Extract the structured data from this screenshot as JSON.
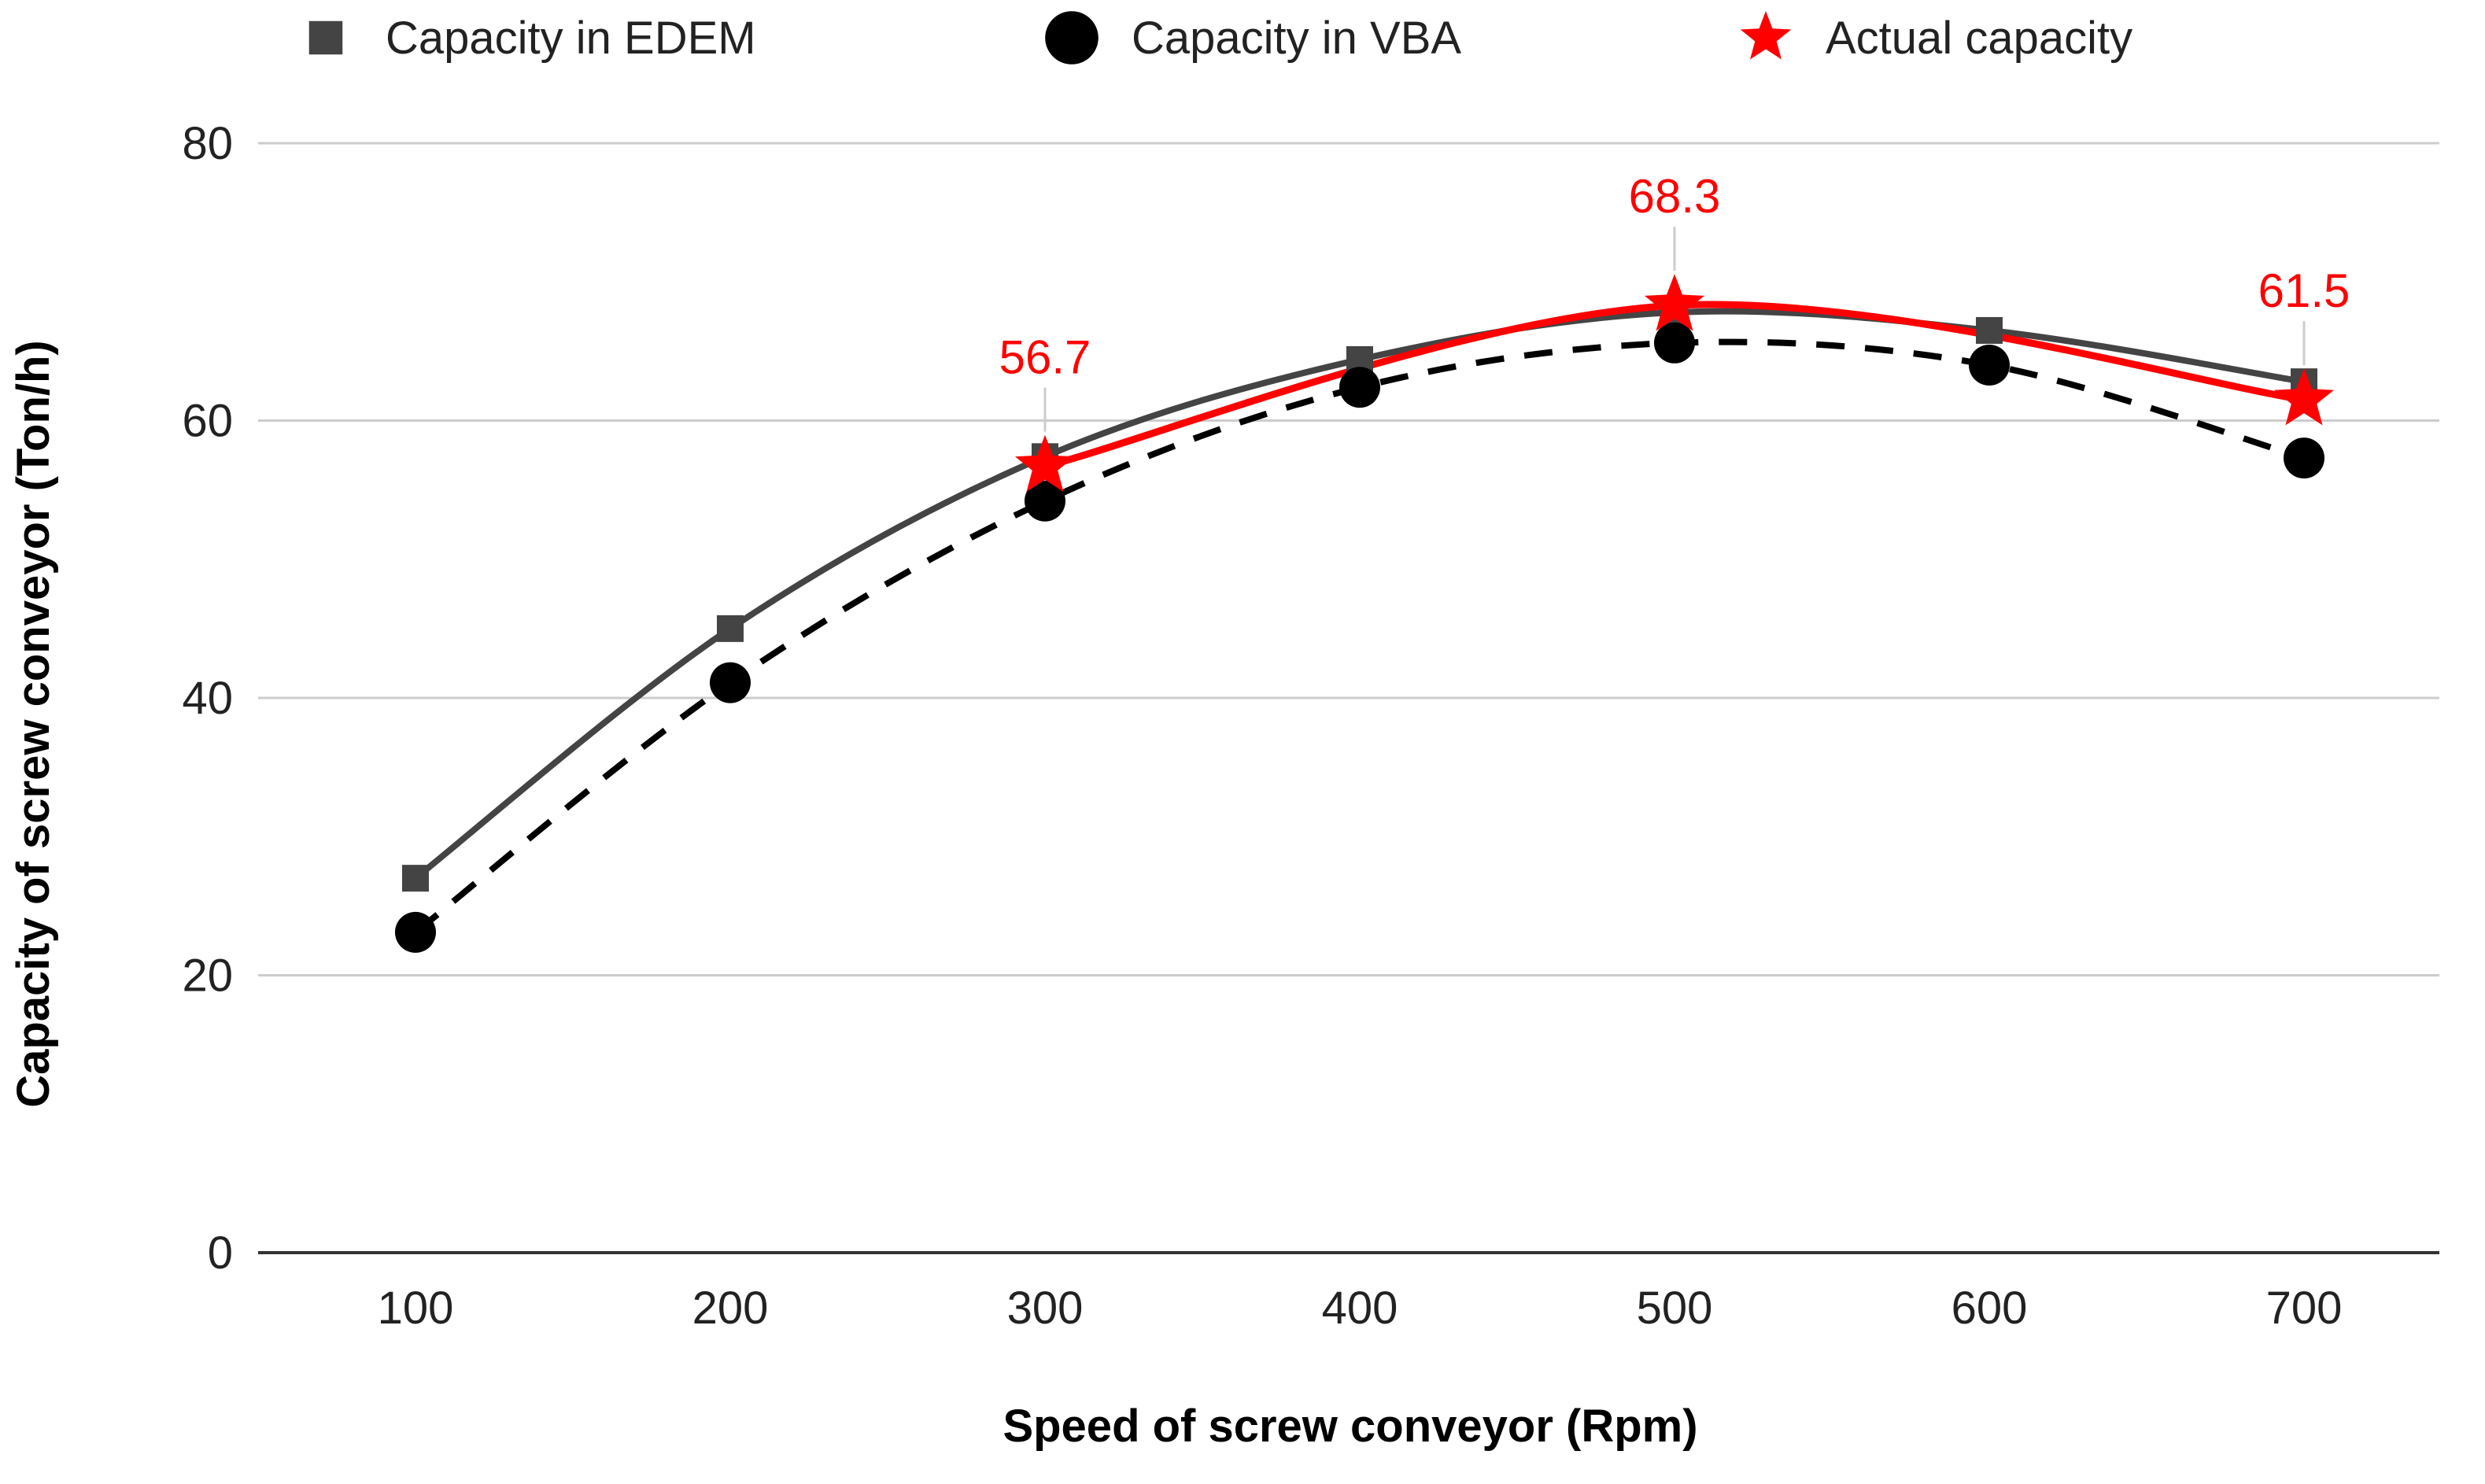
{
  "chart_data": {
    "type": "line",
    "title": "",
    "xlabel": "Speed of screw conveyor (Rpm)",
    "ylabel": "Capacity of screw conveyor (Ton/h)",
    "x": [
      100,
      200,
      300,
      400,
      500,
      600,
      700
    ],
    "x_tick_labels": [
      "100",
      "200",
      "300",
      "400",
      "500",
      "600",
      "700"
    ],
    "y_tick_labels": [
      "0",
      "20",
      "40",
      "60",
      "80"
    ],
    "y_ticks": [
      0,
      20,
      40,
      60,
      80
    ],
    "ylim": [
      0,
      80
    ],
    "grid": true,
    "legend_position": "top",
    "series": [
      {
        "name": "Capacity in EDEM",
        "x": [
          100,
          200,
          300,
          400,
          500,
          600,
          700
        ],
        "values": [
          27,
          45,
          57.4,
          64.4,
          67.8,
          66.5,
          62.8
        ],
        "color": "#444444",
        "marker": "square",
        "line": "solid"
      },
      {
        "name": "Capacity in VBA",
        "x": [
          100,
          200,
          300,
          400,
          500,
          600,
          700
        ],
        "values": [
          23.1,
          41.1,
          54.2,
          62.4,
          65.6,
          64,
          57.3
        ],
        "color": "#000000",
        "marker": "circle",
        "line": "dashed"
      },
      {
        "name": "Actual capacity",
        "x": [
          300,
          500,
          700
        ],
        "values": [
          56.7,
          68.3,
          61.5
        ],
        "data_labels": [
          "56.7",
          "68.3",
          "61.5"
        ],
        "color": "#ff0000",
        "marker": "star",
        "line": "solid"
      }
    ]
  }
}
